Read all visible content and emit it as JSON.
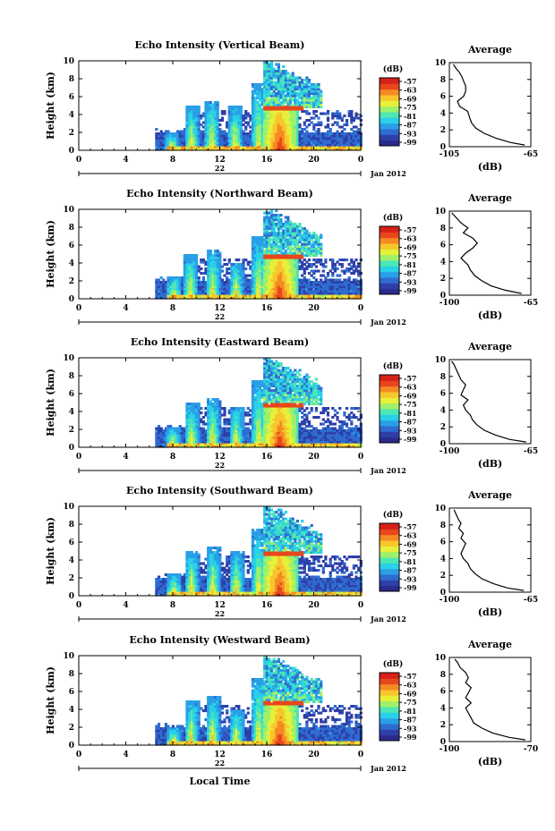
{
  "chart_data": [
    {
      "type": "heatmap",
      "title": "Echo Intensity (Vertical Beam)",
      "ylabel": "Height (km)",
      "xlabel": "",
      "x_ticks": [
        "0",
        "4",
        "8",
        "12",
        "16",
        "20",
        "0"
      ],
      "xlim": [
        0,
        24
      ],
      "y_ticks": [
        "0",
        "2",
        "4",
        "6",
        "8",
        "10"
      ],
      "ylim": [
        0,
        10
      ],
      "date_label": "22",
      "month_label": "Jan 2012",
      "colorbar_unit": "(dB)",
      "colorbar_ticks": [
        "-57",
        "-63",
        "-69",
        "-75",
        "-81",
        "-87",
        "-93",
        "-99"
      ],
      "average": {
        "title": "Average",
        "xlabel": "(dB)",
        "x_ticks": [
          "-105",
          "-65"
        ],
        "xlim": [
          -105,
          -65
        ],
        "y_ticks": [
          "0",
          "2",
          "4",
          "6",
          "8",
          "10"
        ],
        "profile": [
          [
            -68,
            0.2
          ],
          [
            -75,
            0.5
          ],
          [
            -82,
            1.0
          ],
          [
            -88,
            1.6
          ],
          [
            -92,
            2.2
          ],
          [
            -94,
            2.8
          ],
          [
            -95,
            3.4
          ],
          [
            -96,
            4.2
          ],
          [
            -100,
            4.8
          ],
          [
            -101,
            5.4
          ],
          [
            -98,
            6.0
          ],
          [
            -97,
            6.6
          ],
          [
            -97,
            7.2
          ],
          [
            -98,
            7.8
          ],
          [
            -99,
            8.4
          ],
          [
            -100,
            8.8
          ],
          [
            -102,
            9.4
          ],
          [
            -103,
            9.8
          ]
        ]
      },
      "features": {
        "onset_hour": 6.5,
        "columns": [
          [
            7.8,
            1.8
          ],
          [
            9.5,
            5.0
          ],
          [
            11.2,
            5.5
          ],
          [
            13.2,
            5.0
          ],
          [
            15.2,
            7.5
          ]
        ],
        "core": [
          15.5,
          18.5,
          4.6
        ],
        "upper_cloud": [
          15.5,
          20.5,
          9.8
        ],
        "bright_band_km": 4.6
      }
    },
    {
      "type": "heatmap",
      "title": "Echo Intensity (Northward Beam)",
      "ylabel": "Height (km)",
      "xlabel": "",
      "x_ticks": [
        "0",
        "4",
        "8",
        "12",
        "16",
        "20",
        "0"
      ],
      "xlim": [
        0,
        24
      ],
      "y_ticks": [
        "0",
        "2",
        "4",
        "6",
        "8",
        "10"
      ],
      "ylim": [
        0,
        10
      ],
      "date_label": "22",
      "month_label": "Jan 2012",
      "colorbar_unit": "(dB)",
      "colorbar_ticks": [
        "-57",
        "-63",
        "-69",
        "-75",
        "-81",
        "-87",
        "-93",
        "-99"
      ],
      "average": {
        "title": "Average",
        "xlabel": "(dB)",
        "x_ticks": [
          "-100",
          "-65"
        ],
        "xlim": [
          -100,
          -65
        ],
        "y_ticks": [
          "0",
          "2",
          "4",
          "6",
          "8",
          "10"
        ],
        "profile": [
          [
            -69,
            0.2
          ],
          [
            -76,
            0.6
          ],
          [
            -82,
            1.1
          ],
          [
            -86,
            1.7
          ],
          [
            -89,
            2.3
          ],
          [
            -91,
            3.0
          ],
          [
            -92,
            3.6
          ],
          [
            -95,
            4.4
          ],
          [
            -93,
            5.0
          ],
          [
            -90,
            5.6
          ],
          [
            -88,
            6.2
          ],
          [
            -90,
            6.8
          ],
          [
            -94,
            7.4
          ],
          [
            -92,
            8.0
          ],
          [
            -95,
            8.6
          ],
          [
            -97,
            9.2
          ],
          [
            -99,
            9.8
          ]
        ]
      },
      "features": {
        "onset_hour": 6.5,
        "columns": [
          [
            8.0,
            2.5
          ],
          [
            9.4,
            5.0
          ],
          [
            11.3,
            5.5
          ],
          [
            13.3,
            4.0
          ],
          [
            15.2,
            7.0
          ]
        ],
        "core": [
          15.5,
          18.5,
          4.6
        ],
        "upper_cloud": [
          15.5,
          20.5,
          9.8
        ],
        "bright_band_km": 4.6
      }
    },
    {
      "type": "heatmap",
      "title": "Echo Intensity (Eastward Beam)",
      "ylabel": "Height (km)",
      "xlabel": "",
      "x_ticks": [
        "0",
        "4",
        "8",
        "12",
        "16",
        "20",
        "0"
      ],
      "xlim": [
        0,
        24
      ],
      "y_ticks": [
        "0",
        "2",
        "4",
        "6",
        "8",
        "10"
      ],
      "ylim": [
        0,
        10
      ],
      "date_label": "22",
      "month_label": "Jan 2012",
      "colorbar_unit": "(dB)",
      "colorbar_ticks": [
        "-57",
        "-63",
        "-69",
        "-75",
        "-81",
        "-87",
        "-93",
        "-99"
      ],
      "average": {
        "title": "Average",
        "xlabel": "(dB)",
        "x_ticks": [
          "-100",
          "-65"
        ],
        "xlim": [
          -100,
          -65
        ],
        "y_ticks": [
          "0",
          "2",
          "4",
          "6",
          "8",
          "10"
        ],
        "profile": [
          [
            -67,
            0.2
          ],
          [
            -74,
            0.5
          ],
          [
            -80,
            1.0
          ],
          [
            -85,
            1.6
          ],
          [
            -88,
            2.2
          ],
          [
            -90,
            2.8
          ],
          [
            -91,
            3.4
          ],
          [
            -93,
            4.0
          ],
          [
            -94,
            4.6
          ],
          [
            -92,
            5.2
          ],
          [
            -95,
            5.8
          ],
          [
            -94,
            6.4
          ],
          [
            -93,
            7.0
          ],
          [
            -95,
            7.6
          ],
          [
            -96,
            8.2
          ],
          [
            -97,
            8.8
          ],
          [
            -98,
            9.4
          ],
          [
            -99,
            9.8
          ]
        ]
      },
      "features": {
        "onset_hour": 6.5,
        "columns": [
          [
            7.9,
            2.2
          ],
          [
            9.5,
            5.0
          ],
          [
            11.3,
            5.5
          ],
          [
            13.3,
            4.5
          ],
          [
            15.2,
            7.5
          ]
        ],
        "core": [
          15.5,
          18.5,
          4.6
        ],
        "upper_cloud": [
          15.5,
          20.5,
          9.8
        ],
        "bright_band_km": 4.6
      }
    },
    {
      "type": "heatmap",
      "title": "Echo Intensity (Southward Beam)",
      "ylabel": "Height (km)",
      "xlabel": "",
      "x_ticks": [
        "0",
        "4",
        "8",
        "12",
        "16",
        "20",
        "0"
      ],
      "xlim": [
        0,
        24
      ],
      "y_ticks": [
        "0",
        "2",
        "4",
        "6",
        "8",
        "10"
      ],
      "ylim": [
        0,
        10
      ],
      "date_label": "22",
      "month_label": "Jan 2012",
      "colorbar_unit": "(dB)",
      "colorbar_ticks": [
        "-57",
        "-63",
        "-69",
        "-75",
        "-81",
        "-87",
        "-93",
        "-99"
      ],
      "average": {
        "title": "Average",
        "xlabel": "(dB)",
        "x_ticks": [
          "-100",
          "-65"
        ],
        "xlim": [
          -100,
          -65
        ],
        "y_ticks": [
          "0",
          "2",
          "4",
          "6",
          "8",
          "10"
        ],
        "profile": [
          [
            -68,
            0.2
          ],
          [
            -75,
            0.5
          ],
          [
            -81,
            1.0
          ],
          [
            -86,
            1.6
          ],
          [
            -89,
            2.2
          ],
          [
            -91,
            2.8
          ],
          [
            -92,
            3.4
          ],
          [
            -94,
            4.0
          ],
          [
            -95,
            4.6
          ],
          [
            -94,
            5.2
          ],
          [
            -93,
            5.8
          ],
          [
            -95,
            6.4
          ],
          [
            -94,
            7.0
          ],
          [
            -96,
            7.6
          ],
          [
            -95,
            8.2
          ],
          [
            -96,
            8.6
          ],
          [
            -97,
            9.2
          ],
          [
            -98,
            9.8
          ]
        ]
      },
      "features": {
        "onset_hour": 6.5,
        "columns": [
          [
            8.0,
            2.5
          ],
          [
            9.5,
            5.0
          ],
          [
            11.3,
            5.5
          ],
          [
            13.3,
            5.0
          ],
          [
            15.2,
            7.5
          ]
        ],
        "core": [
          15.5,
          18.5,
          4.6
        ],
        "upper_cloud": [
          15.5,
          20.5,
          9.8
        ],
        "bright_band_km": 4.6
      }
    },
    {
      "type": "heatmap",
      "title": "Echo Intensity (Westward Beam)",
      "ylabel": "Height (km)",
      "xlabel": "Local Time",
      "x_ticks": [
        "0",
        "4",
        "8",
        "12",
        "16",
        "20",
        "0"
      ],
      "xlim": [
        0,
        24
      ],
      "y_ticks": [
        "0",
        "2",
        "4",
        "6",
        "8",
        "10"
      ],
      "ylim": [
        0,
        10
      ],
      "date_label": "22",
      "month_label": "Jan 2012",
      "colorbar_unit": "(dB)",
      "colorbar_ticks": [
        "-57",
        "-63",
        "-69",
        "-75",
        "-81",
        "-87",
        "-93",
        "-99"
      ],
      "average": {
        "title": "Average",
        "xlabel": "(dB)",
        "x_ticks": [
          "-100",
          "-70"
        ],
        "xlim": [
          -100,
          -70
        ],
        "y_ticks": [
          "0",
          "2",
          "4",
          "6",
          "8",
          "10"
        ],
        "profile": [
          [
            -72,
            0.2
          ],
          [
            -78,
            0.5
          ],
          [
            -84,
            1.0
          ],
          [
            -88,
            1.6
          ],
          [
            -91,
            2.2
          ],
          [
            -92,
            2.8
          ],
          [
            -93,
            3.4
          ],
          [
            -94,
            4.0
          ],
          [
            -92,
            4.6
          ],
          [
            -94,
            5.2
          ],
          [
            -93,
            5.8
          ],
          [
            -92,
            6.4
          ],
          [
            -94,
            7.0
          ],
          [
            -93,
            7.6
          ],
          [
            -94,
            8.2
          ],
          [
            -96,
            8.8
          ],
          [
            -97,
            9.4
          ],
          [
            -98,
            9.8
          ]
        ]
      },
      "features": {
        "onset_hour": 6.5,
        "columns": [
          [
            8.0,
            2.0
          ],
          [
            9.5,
            5.0
          ],
          [
            11.3,
            5.5
          ],
          [
            13.3,
            4.0
          ],
          [
            15.2,
            7.5
          ]
        ],
        "core": [
          15.5,
          18.5,
          4.6
        ],
        "upper_cloud": [
          15.5,
          20.5,
          9.8
        ],
        "bright_band_km": 4.6
      }
    }
  ],
  "colormap": [
    "#2b2a8c",
    "#2f3fa8",
    "#2f6cd0",
    "#2a9fe6",
    "#29d0e8",
    "#4de6b5",
    "#9ef06a",
    "#e6f03a",
    "#f7c52c",
    "#f58a22",
    "#e8461d",
    "#d6201a"
  ]
}
